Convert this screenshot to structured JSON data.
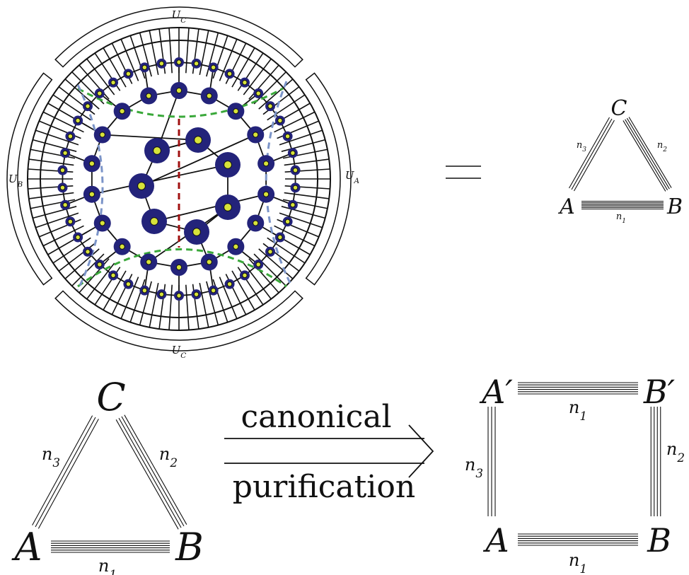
{
  "tensor_network": {
    "boundary_labels": {
      "top": "U_C",
      "bottom": "U_C",
      "left": "U_B",
      "right": "U_A"
    },
    "colors": {
      "node_fill": "#23237a",
      "leg_fill": "#d7e33a",
      "cut_green": "#3aa83a",
      "cut_blue": "#7b94c8",
      "cut_red": "#a01010"
    }
  },
  "equals_sign": "=",
  "small_triangle": {
    "vertices": {
      "top": "C",
      "left": "A",
      "right": "B"
    },
    "edges": {
      "AB": "n_1",
      "BC": "n_2",
      "CA": "n_3"
    }
  },
  "big_triangle": {
    "vertices": {
      "top": "C",
      "left": "A",
      "right": "B"
    },
    "edges": {
      "AB": "n_1",
      "BC": "n_2",
      "CA": "n_3"
    }
  },
  "arrow": {
    "top_label": "canonical",
    "bottom_label": "purification"
  },
  "square": {
    "vertices": {
      "top_left": "A′",
      "top_right": "B′",
      "bottom_left": "A",
      "bottom_right": "B"
    },
    "edges": {
      "top": "n_1",
      "bottom": "n_1",
      "left": "n_3",
      "right": "n_2"
    }
  }
}
